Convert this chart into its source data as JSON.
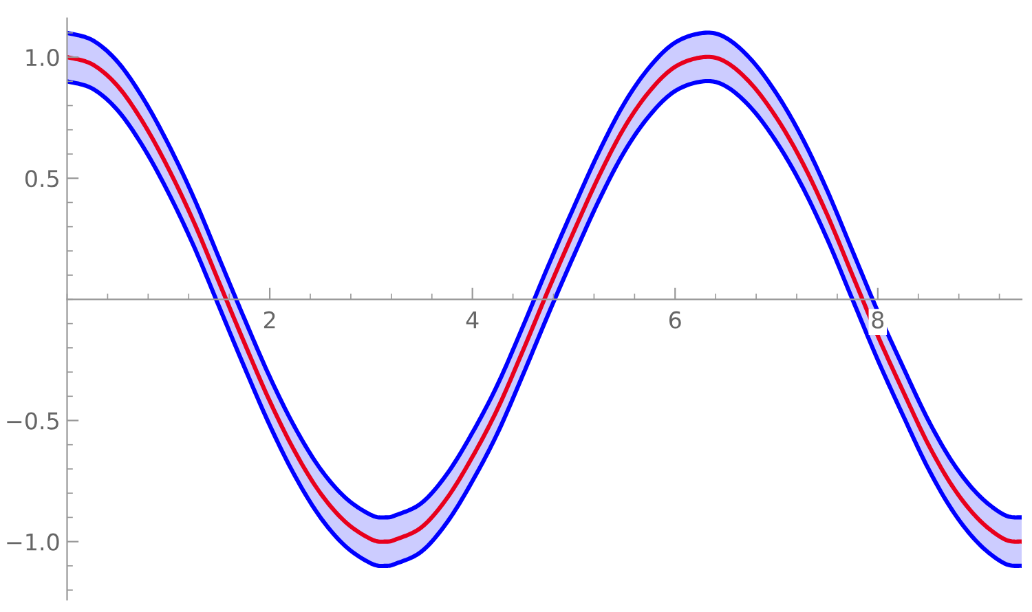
{
  "chart_data": {
    "type": "line",
    "grid": false,
    "legend": false,
    "marker": "none",
    "line_style": "solid",
    "xlim": [
      0,
      9.42
    ],
    "ylim": [
      -1.24,
      1.16
    ],
    "xticks": [
      2,
      4,
      6,
      8
    ],
    "yticks": [
      {
        "value": -1,
        "label": "−1.0"
      },
      {
        "value": -0.5,
        "label": "−0.5"
      },
      {
        "value": 0.5,
        "label": "0.5"
      },
      {
        "value": 1,
        "label": "1.0"
      }
    ],
    "series": [
      {
        "color": "#0000ff",
        "x": [
          0,
          0.25,
          0.5,
          0.75,
          1.0,
          1.25,
          1.5,
          1.75,
          2.0,
          2.25,
          2.5,
          2.75,
          3.0,
          3.14,
          3.25,
          3.5,
          3.75,
          4.0,
          4.25,
          4.5,
          4.75,
          5.0,
          5.25,
          5.5,
          5.75,
          6.0,
          6.28,
          6.5,
          6.75,
          7.0,
          7.25,
          7.5,
          7.75,
          8.0,
          8.25,
          8.5,
          8.75,
          9.0,
          9.25,
          9.42
        ],
        "values": [
          1.1,
          1.07,
          0.98,
          0.83,
          0.64,
          0.42,
          0.17,
          -0.08,
          -0.32,
          -0.53,
          -0.7,
          -0.82,
          -0.89,
          -0.9,
          -0.89,
          -0.84,
          -0.72,
          -0.55,
          -0.35,
          -0.11,
          0.14,
          0.38,
          0.61,
          0.81,
          0.96,
          1.06,
          1.1,
          1.08,
          0.99,
          0.85,
          0.67,
          0.45,
          0.2,
          -0.05,
          -0.28,
          -0.5,
          -0.68,
          -0.81,
          -0.89,
          -0.9
        ]
      },
      {
        "color": "#0000ff",
        "x": [
          0,
          0.25,
          0.5,
          0.75,
          1.0,
          1.25,
          1.5,
          1.75,
          2.0,
          2.25,
          2.5,
          2.75,
          3.0,
          3.14,
          3.25,
          3.5,
          3.75,
          4.0,
          4.25,
          4.5,
          4.75,
          5.0,
          5.25,
          5.5,
          5.75,
          6.0,
          6.28,
          6.5,
          6.75,
          7.0,
          7.25,
          7.5,
          7.75,
          8.0,
          8.25,
          8.5,
          8.75,
          9.0,
          9.25,
          9.42
        ],
        "values": [
          0.9,
          0.87,
          0.78,
          0.63,
          0.44,
          0.22,
          -0.03,
          -0.28,
          -0.52,
          -0.73,
          -0.9,
          -1.02,
          -1.09,
          -1.1,
          -1.09,
          -1.04,
          -0.92,
          -0.75,
          -0.55,
          -0.31,
          -0.06,
          0.18,
          0.41,
          0.61,
          0.76,
          0.86,
          0.9,
          0.88,
          0.79,
          0.65,
          0.47,
          0.25,
          0.0,
          -0.25,
          -0.48,
          -0.7,
          -0.88,
          -1.01,
          -1.09,
          -1.1
        ]
      },
      {
        "color": "#e8001c",
        "x": [
          0,
          0.25,
          0.5,
          0.75,
          1.0,
          1.25,
          1.5,
          1.75,
          2.0,
          2.25,
          2.5,
          2.75,
          3.0,
          3.14,
          3.25,
          3.5,
          3.75,
          4.0,
          4.25,
          4.5,
          4.75,
          5.0,
          5.25,
          5.5,
          5.75,
          6.0,
          6.28,
          6.5,
          6.75,
          7.0,
          7.25,
          7.5,
          7.75,
          8.0,
          8.25,
          8.5,
          8.75,
          9.0,
          9.25,
          9.42
        ],
        "values": [
          1.0,
          0.97,
          0.88,
          0.73,
          0.54,
          0.32,
          0.07,
          -0.18,
          -0.42,
          -0.63,
          -0.8,
          -0.92,
          -0.99,
          -1.0,
          -0.99,
          -0.94,
          -0.82,
          -0.65,
          -0.45,
          -0.21,
          0.04,
          0.28,
          0.51,
          0.71,
          0.86,
          0.96,
          1.0,
          0.98,
          0.89,
          0.75,
          0.57,
          0.35,
          0.1,
          -0.15,
          -0.38,
          -0.6,
          -0.78,
          -0.91,
          -0.99,
          -1.0
        ],
        "lower": [
          0.9,
          0.87,
          0.78,
          0.63,
          0.44,
          0.22,
          -0.03,
          -0.28,
          -0.52,
          -0.73,
          -0.9,
          -1.02,
          -1.09,
          -1.1,
          -1.09,
          -1.04,
          -0.92,
          -0.75,
          -0.55,
          -0.31,
          -0.06,
          0.18,
          0.41,
          0.61,
          0.76,
          0.86,
          0.9,
          0.88,
          0.79,
          0.65,
          0.47,
          0.25,
          0.0,
          -0.25,
          -0.48,
          -0.7,
          -0.88,
          -1.01,
          -1.09,
          -1.1
        ],
        "upper": [
          1.1,
          1.07,
          0.98,
          0.83,
          0.64,
          0.42,
          0.17,
          -0.08,
          -0.32,
          -0.53,
          -0.7,
          -0.82,
          -0.89,
          -0.9,
          -0.89,
          -0.84,
          -0.72,
          -0.55,
          -0.35,
          -0.11,
          0.14,
          0.38,
          0.61,
          0.81,
          0.96,
          1.06,
          1.1,
          1.08,
          0.99,
          0.85,
          0.67,
          0.45,
          0.2,
          -0.05,
          -0.28,
          -0.5,
          -0.68,
          -0.81,
          -0.89,
          -0.9
        ]
      }
    ]
  }
}
